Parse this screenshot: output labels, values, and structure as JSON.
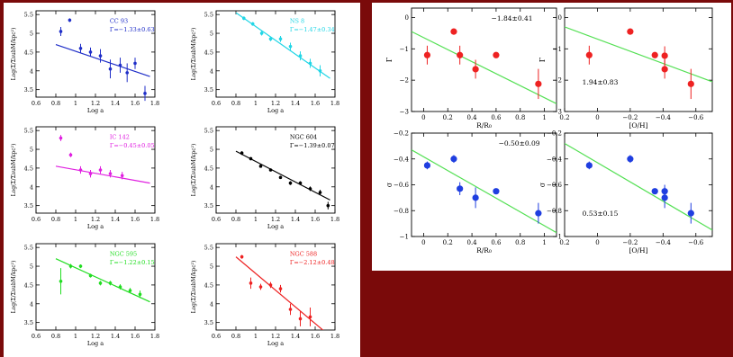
{
  "colors": {
    "background": "#7a0a0a",
    "panel": "#ffffff",
    "axis": "#000000"
  },
  "chart_data": [
    {
      "type": "scatter",
      "id": "cc93",
      "title": "CC 93",
      "annotation": "Γ=−1.33±0.63",
      "xlabel": "Log a",
      "ylabel": "Log(Σ/ΣsubM/kpc²)",
      "xlim": [
        0.6,
        1.8
      ],
      "ylim": [
        3.3,
        5.6
      ],
      "xticks": [
        "0.6",
        "0.8",
        "1",
        "1.2",
        "1.4",
        "1.6",
        "1.8"
      ],
      "yticks": [
        "3.5",
        "4",
        "4.5",
        "5",
        "5.5"
      ],
      "color": "#1f2ec8",
      "fit_color": "#1f2ec8",
      "points": [
        {
          "x": 0.85,
          "y": 5.05,
          "e": 0.12
        },
        {
          "x": 0.94,
          "y": 5.35,
          "e": 0.05
        },
        {
          "x": 1.05,
          "y": 4.6,
          "e": 0.12
        },
        {
          "x": 1.15,
          "y": 4.5,
          "e": 0.12
        },
        {
          "x": 1.25,
          "y": 4.4,
          "e": 0.18
        },
        {
          "x": 1.35,
          "y": 4.05,
          "e": 0.25
        },
        {
          "x": 1.45,
          "y": 4.15,
          "e": 0.2
        },
        {
          "x": 1.52,
          "y": 3.95,
          "e": 0.25
        },
        {
          "x": 1.6,
          "y": 4.2,
          "e": 0.15
        },
        {
          "x": 1.7,
          "y": 3.4,
          "e": 0.2
        }
      ],
      "fit": [
        [
          0.8,
          4.7
        ],
        [
          1.75,
          3.85
        ]
      ]
    },
    {
      "type": "scatter",
      "id": "ns8",
      "title": "NS 8",
      "annotation": "Γ=−1.47±0.34",
      "xlabel": "Log a",
      "ylabel": "Log(Σ/ΣsubM/kpc²)",
      "xlim": [
        0.6,
        1.8
      ],
      "ylim": [
        3.3,
        5.6
      ],
      "xticks": [
        "0.6",
        "0.8",
        "1",
        "1.2",
        "1.4",
        "1.6",
        "1.8"
      ],
      "yticks": [
        "3.5",
        "4",
        "4.5",
        "5",
        "5.5"
      ],
      "color": "#22d6e6",
      "fit_color": "#22d6e6",
      "points": [
        {
          "x": 0.88,
          "y": 5.4,
          "e": 0.05
        },
        {
          "x": 0.97,
          "y": 5.25,
          "e": 0.05
        },
        {
          "x": 1.06,
          "y": 5.0,
          "e": 0.06
        },
        {
          "x": 1.15,
          "y": 4.85,
          "e": 0.06
        },
        {
          "x": 1.25,
          "y": 4.85,
          "e": 0.08
        },
        {
          "x": 1.35,
          "y": 4.65,
          "e": 0.1
        },
        {
          "x": 1.45,
          "y": 4.4,
          "e": 0.12
        },
        {
          "x": 1.55,
          "y": 4.2,
          "e": 0.12
        },
        {
          "x": 1.65,
          "y": 4.0,
          "e": 0.15
        }
      ],
      "fit": [
        [
          0.8,
          5.55
        ],
        [
          1.75,
          3.8
        ]
      ]
    },
    {
      "type": "scatter",
      "id": "ic142",
      "title": "IC 142",
      "annotation": "Γ=−0.45±0.05",
      "xlabel": "Log a",
      "ylabel": "Log(Σ/ΣsubM/kpc²)",
      "xlim": [
        0.6,
        1.8
      ],
      "ylim": [
        3.3,
        5.6
      ],
      "xticks": [
        "0.6",
        "0.8",
        "1",
        "1.2",
        "1.4",
        "1.6",
        "1.8"
      ],
      "yticks": [
        "3.5",
        "4",
        "4.5",
        "5",
        "5.5"
      ],
      "color": "#e020e0",
      "fit_color": "#e020e0",
      "points": [
        {
          "x": 0.85,
          "y": 5.3,
          "e": 0.08
        },
        {
          "x": 0.95,
          "y": 4.85,
          "e": 0.06
        },
        {
          "x": 1.05,
          "y": 4.45,
          "e": 0.1
        },
        {
          "x": 1.15,
          "y": 4.35,
          "e": 0.1
        },
        {
          "x": 1.25,
          "y": 4.45,
          "e": 0.1
        },
        {
          "x": 1.35,
          "y": 4.35,
          "e": 0.1
        },
        {
          "x": 1.47,
          "y": 4.3,
          "e": 0.1
        }
      ],
      "fit": [
        [
          0.8,
          4.55
        ],
        [
          1.75,
          4.1
        ]
      ]
    },
    {
      "type": "scatter",
      "id": "ngc604",
      "title": "NGC 604",
      "annotation": "Γ=−1.39±0.07",
      "xlabel": "Log a",
      "ylabel": "Log(Σ/ΣsubM/kpc²)",
      "xlim": [
        0.6,
        1.8
      ],
      "ylim": [
        3.3,
        5.6
      ],
      "xticks": [
        "0.6",
        "0.8",
        "1",
        "1.2",
        "1.4",
        "1.6",
        "1.8"
      ],
      "yticks": [
        "3.5",
        "4",
        "4.5",
        "5",
        "5.5"
      ],
      "color": "#000000",
      "fit_color": "#000000",
      "points": [
        {
          "x": 0.86,
          "y": 4.9,
          "e": 0.05
        },
        {
          "x": 0.95,
          "y": 4.75,
          "e": 0.04
        },
        {
          "x": 1.05,
          "y": 4.55,
          "e": 0.04
        },
        {
          "x": 1.15,
          "y": 4.45,
          "e": 0.04
        },
        {
          "x": 1.25,
          "y": 4.25,
          "e": 0.04
        },
        {
          "x": 1.35,
          "y": 4.1,
          "e": 0.05
        },
        {
          "x": 1.45,
          "y": 4.1,
          "e": 0.05
        },
        {
          "x": 1.55,
          "y": 3.95,
          "e": 0.06
        },
        {
          "x": 1.65,
          "y": 3.85,
          "e": 0.07
        },
        {
          "x": 1.73,
          "y": 3.5,
          "e": 0.1
        }
      ],
      "fit": [
        [
          0.8,
          4.95
        ],
        [
          1.75,
          3.65
        ]
      ]
    },
    {
      "type": "scatter",
      "id": "ngc595",
      "title": "NGC 595",
      "annotation": "Γ=−1.22±0.15",
      "xlabel": "Log a",
      "ylabel": "Log(Σ/ΣsubM/kpc²)",
      "xlim": [
        0.6,
        1.8
      ],
      "ylim": [
        3.3,
        5.6
      ],
      "xticks": [
        "0.6",
        "0.8",
        "1",
        "1.2",
        "1.4",
        "1.6",
        "1.8"
      ],
      "yticks": [
        "3.5",
        "4",
        "4.5",
        "5",
        "5.5"
      ],
      "color": "#22dd22",
      "fit_color": "#22dd22",
      "points": [
        {
          "x": 0.85,
          "y": 4.6,
          "e": 0.35
        },
        {
          "x": 0.95,
          "y": 5.0,
          "e": 0.06
        },
        {
          "x": 1.05,
          "y": 5.0,
          "e": 0.05
        },
        {
          "x": 1.15,
          "y": 4.75,
          "e": 0.05
        },
        {
          "x": 1.25,
          "y": 4.55,
          "e": 0.06
        },
        {
          "x": 1.35,
          "y": 4.55,
          "e": 0.06
        },
        {
          "x": 1.45,
          "y": 4.45,
          "e": 0.07
        },
        {
          "x": 1.55,
          "y": 4.35,
          "e": 0.07
        },
        {
          "x": 1.65,
          "y": 4.25,
          "e": 0.1
        }
      ],
      "fit": [
        [
          0.8,
          5.2
        ],
        [
          1.75,
          4.05
        ]
      ]
    },
    {
      "type": "scatter",
      "id": "ngc588",
      "title": "NGC 588",
      "annotation": "Γ=−2.12±0.48",
      "xlabel": "Log a",
      "ylabel": "Log(Σ/ΣsubM/kpc²)",
      "xlim": [
        0.6,
        1.8
      ],
      "ylim": [
        3.3,
        5.6
      ],
      "xticks": [
        "0.6",
        "0.8",
        "1",
        "1.2",
        "1.4",
        "1.6",
        "1.8"
      ],
      "yticks": [
        "3.5",
        "4",
        "4.5",
        "5",
        "5.5"
      ],
      "color": "#ee2222",
      "fit_color": "#ee2222",
      "points": [
        {
          "x": 0.86,
          "y": 5.25,
          "e": 0.05
        },
        {
          "x": 0.95,
          "y": 4.55,
          "e": 0.15
        },
        {
          "x": 1.05,
          "y": 4.45,
          "e": 0.08
        },
        {
          "x": 1.15,
          "y": 4.5,
          "e": 0.08
        },
        {
          "x": 1.25,
          "y": 4.4,
          "e": 0.1
        },
        {
          "x": 1.35,
          "y": 3.85,
          "e": 0.15
        },
        {
          "x": 1.45,
          "y": 3.6,
          "e": 0.2
        },
        {
          "x": 1.55,
          "y": 3.65,
          "e": 0.25
        }
      ],
      "fit": [
        [
          0.8,
          5.25
        ],
        [
          1.7,
          3.25
        ]
      ]
    },
    {
      "type": "scatter",
      "id": "gamma-vs-r",
      "annotation": "−1.84±0.41",
      "xlabel": "R/R₀",
      "ylabel": "Γ",
      "xlim": [
        -0.1,
        1.1
      ],
      "ylim": [
        -3,
        0.3
      ],
      "xticks": [
        "0",
        "0.2",
        "0.4",
        "0.6",
        "0.8",
        "1"
      ],
      "yticks": [
        "−3",
        "−2",
        "−1",
        "0"
      ],
      "color": "#ee2222",
      "fit_color": "#55e055",
      "points": [
        {
          "x": 0.03,
          "y": -1.2,
          "e": 0.3
        },
        {
          "x": 0.25,
          "y": -0.45,
          "e": 0.05
        },
        {
          "x": 0.3,
          "y": -1.2,
          "e": 0.3
        },
        {
          "x": 0.43,
          "y": -1.65,
          "e": 0.3
        },
        {
          "x": 0.6,
          "y": -1.2,
          "e": 0.08
        },
        {
          "x": 0.95,
          "y": -2.12,
          "e": 0.48
        }
      ],
      "fit": [
        [
          -0.1,
          -0.45
        ],
        [
          1.1,
          -2.75
        ]
      ]
    },
    {
      "type": "scatter",
      "id": "gamma-vs-oh",
      "annotation": "1.94±0.83",
      "xlabel": "[O/H]",
      "ylabel": "Γ",
      "xlim": [
        0.2,
        -0.7
      ],
      "ylim": [
        -3,
        0.3
      ],
      "xticks": [
        "0.2",
        "0",
        "−0.2",
        "−0.4",
        "−0.6"
      ],
      "yticks": [
        "−3",
        "−2",
        "−1",
        "0"
      ],
      "color": "#ee2222",
      "fit_color": "#55e055",
      "points": [
        {
          "x": 0.05,
          "y": -1.2,
          "e": 0.3
        },
        {
          "x": -0.2,
          "y": -0.45,
          "e": 0.05
        },
        {
          "x": -0.35,
          "y": -1.2,
          "e": 0.08
        },
        {
          "x": -0.41,
          "y": -1.22,
          "e": 0.3
        },
        {
          "x": -0.41,
          "y": -1.65,
          "e": 0.3
        },
        {
          "x": -0.57,
          "y": -2.12,
          "e": 0.48
        }
      ],
      "fit": [
        [
          0.2,
          -0.3
        ],
        [
          -0.7,
          -2.05
        ]
      ]
    },
    {
      "type": "scatter",
      "id": "sigma-vs-r",
      "annotation": "−0.50±0.09",
      "xlabel": "R/R₀",
      "ylabel": "σ",
      "xlim": [
        -0.1,
        1.1
      ],
      "ylim": [
        -1,
        -0.2
      ],
      "xticks": [
        "0",
        "0.2",
        "0.4",
        "0.6",
        "0.8",
        "1"
      ],
      "yticks": [
        "−1",
        "−0.8",
        "−0.6",
        "−0.4",
        "−0.2"
      ],
      "color": "#1f3ee0",
      "fit_color": "#55e055",
      "points": [
        {
          "x": 0.03,
          "y": -0.45,
          "e": 0.03
        },
        {
          "x": 0.25,
          "y": -0.4,
          "e": 0.03
        },
        {
          "x": 0.3,
          "y": -0.63,
          "e": 0.05
        },
        {
          "x": 0.43,
          "y": -0.7,
          "e": 0.08
        },
        {
          "x": 0.6,
          "y": -0.65,
          "e": 0.02
        },
        {
          "x": 0.95,
          "y": -0.82,
          "e": 0.08
        }
      ],
      "fit": [
        [
          -0.1,
          -0.33
        ],
        [
          1.1,
          -0.97
        ]
      ]
    },
    {
      "type": "scatter",
      "id": "sigma-vs-oh",
      "annotation": "0.53±0.15",
      "xlabel": "[O/H]",
      "ylabel": "σ",
      "xlim": [
        0.2,
        -0.7
      ],
      "ylim": [
        -1,
        -0.2
      ],
      "xticks": [
        "0.2",
        "0",
        "−0.2",
        "−0.4",
        "−0.6"
      ],
      "yticks": [
        "−1",
        "−0.8",
        "−0.6",
        "−0.4",
        "−0.2"
      ],
      "color": "#1f3ee0",
      "fit_color": "#55e055",
      "points": [
        {
          "x": 0.05,
          "y": -0.45,
          "e": 0.03
        },
        {
          "x": -0.2,
          "y": -0.4,
          "e": 0.03
        },
        {
          "x": -0.35,
          "y": -0.65,
          "e": 0.02
        },
        {
          "x": -0.41,
          "y": -0.65,
          "e": 0.05
        },
        {
          "x": -0.41,
          "y": -0.7,
          "e": 0.08
        },
        {
          "x": -0.57,
          "y": -0.82,
          "e": 0.08
        }
      ],
      "fit": [
        [
          0.2,
          -0.28
        ],
        [
          -0.7,
          -0.95
        ]
      ]
    }
  ]
}
